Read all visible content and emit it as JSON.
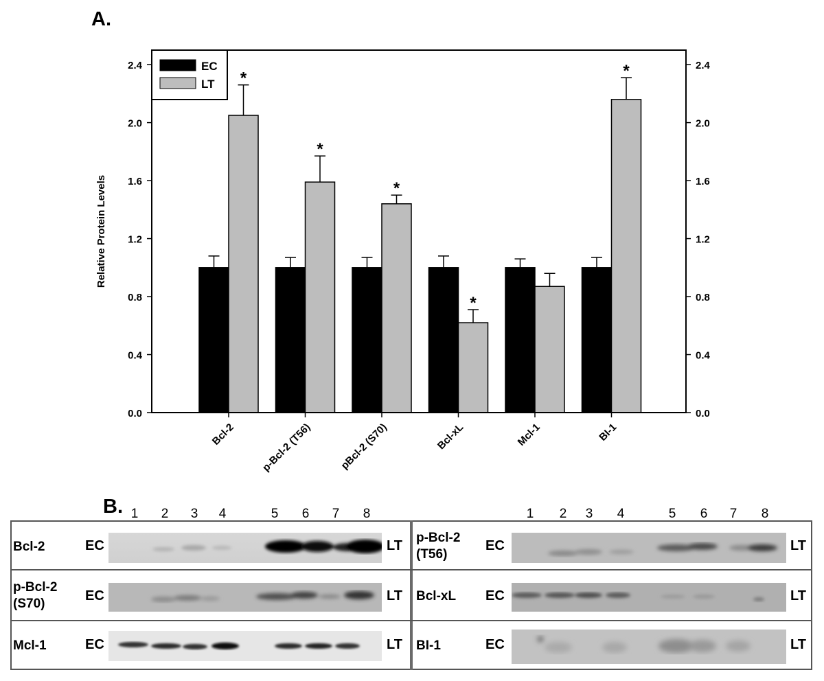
{
  "panel_a_label": "A.",
  "panel_b_label": "B.",
  "chart_data": {
    "type": "bar",
    "ylabel": "Relative Protein Levels",
    "xlabel": "",
    "ylim": [
      0,
      2.5
    ],
    "yticks": [
      "0.0",
      "0.4",
      "0.8",
      "1.2",
      "1.6",
      "2.0",
      "2.4"
    ],
    "yticks_right": [
      "0.0",
      "0.4",
      "0.8",
      "1.2",
      "1.6",
      "2.0",
      "2.4"
    ],
    "categories": [
      "Bcl-2",
      "p-Bcl-2 (T56)",
      "pBcl-2 (S70)",
      "Bcl-xL",
      "Mcl-1",
      "BI-1"
    ],
    "series": [
      {
        "name": "EC",
        "color": "#000000",
        "values": [
          1.0,
          1.0,
          1.0,
          1.0,
          1.0,
          1.0
        ],
        "errors": [
          0.08,
          0.07,
          0.07,
          0.08,
          0.06,
          0.07
        ],
        "significance": [
          "",
          "",
          "",
          "",
          "",
          ""
        ]
      },
      {
        "name": "LT",
        "color": "#bdbdbd",
        "values": [
          2.05,
          1.59,
          1.44,
          0.62,
          0.87,
          2.16
        ],
        "errors": [
          0.21,
          0.18,
          0.06,
          0.09,
          0.09,
          0.15
        ],
        "significance": [
          "*",
          "*",
          "*",
          "*",
          "",
          "*"
        ]
      }
    ],
    "legend_position": "top-left",
    "grid": false
  },
  "blot": {
    "lanes_left": [
      "1",
      "2",
      "3",
      "4",
      "5",
      "6",
      "7",
      "8"
    ],
    "lanes_right": [
      "1",
      "2",
      "3",
      "4",
      "5",
      "6",
      "7",
      "8"
    ],
    "rows": [
      {
        "left": {
          "protein": "Bcl-2",
          "start_label": "EC",
          "end_label": "LT"
        },
        "right": {
          "protein": "p-Bcl-2\n(T56)",
          "start_label": "EC",
          "end_label": "LT"
        }
      },
      {
        "left": {
          "protein": "p-Bcl-2\n(S70)",
          "start_label": "EC",
          "end_label": "LT"
        },
        "right": {
          "protein": "Bcl-xL",
          "start_label": "EC",
          "end_label": "LT"
        }
      },
      {
        "left": {
          "protein": "Mcl-1",
          "start_label": "EC",
          "end_label": "LT"
        },
        "right": {
          "protein": "BI-1",
          "start_label": "EC",
          "end_label": "LT"
        }
      }
    ]
  }
}
